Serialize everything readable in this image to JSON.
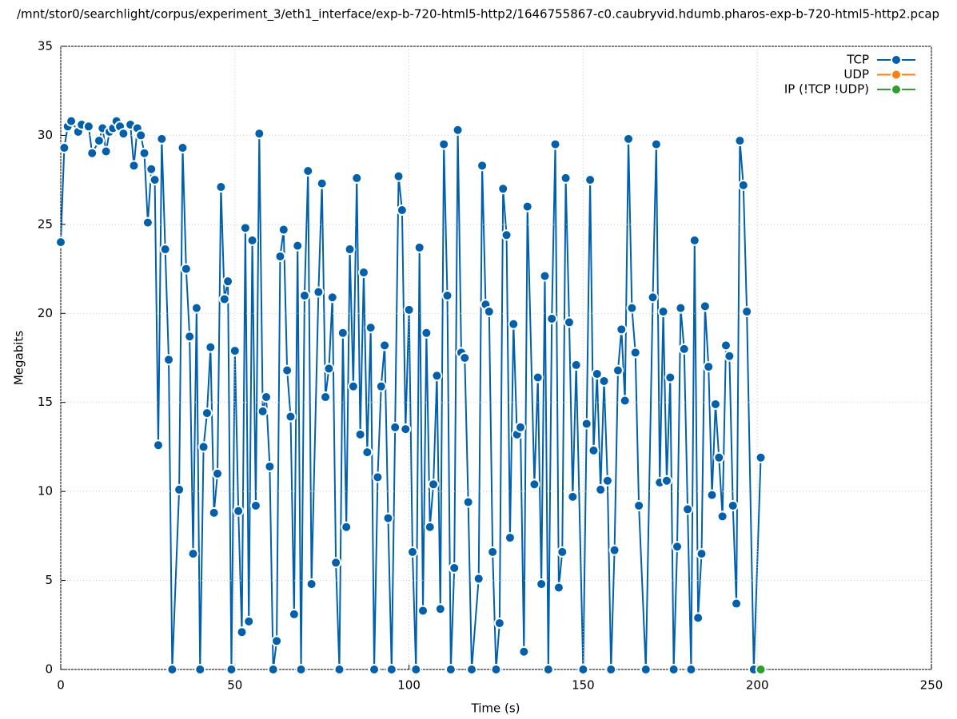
{
  "chart_data": {
    "type": "line",
    "title": "/mnt/stor0/searchlight/corpus/experiment_3/eth1_interface/exp-b-720-html5-http2/1646755867-c0.caubryvid.hdumb.pharos-exp-b-720-html5-http2.pcap",
    "x_label": "Time (s)",
    "y_label": "Megabits",
    "xlim": [
      0,
      250
    ],
    "xticks": [
      0,
      50,
      100,
      150,
      200,
      250
    ],
    "ylim": [
      0,
      35
    ],
    "yticks": [
      0,
      5,
      10,
      15,
      20,
      25,
      30,
      35
    ],
    "grid": true,
    "legend": "top-right",
    "series": [
      {
        "name": "TCP",
        "color": "#0060ad",
        "x": [
          0,
          1,
          2,
          3,
          5,
          6,
          8,
          9,
          11,
          12,
          13,
          14,
          15,
          16,
          17,
          18,
          20,
          21,
          22,
          23,
          24,
          25,
          26,
          27,
          28,
          29,
          30,
          31,
          32,
          34,
          35,
          36,
          37,
          38,
          39,
          40,
          41,
          42,
          43,
          44,
          45,
          46,
          47,
          48,
          49,
          50,
          51,
          52,
          53,
          54,
          55,
          56,
          57,
          58,
          59,
          60,
          61,
          62,
          63,
          64,
          65,
          66,
          67,
          68,
          69,
          70,
          71,
          72,
          74,
          75,
          76,
          77,
          78,
          79,
          80,
          81,
          82,
          83,
          84,
          85,
          86,
          87,
          88,
          89,
          90,
          91,
          92,
          93,
          94,
          95,
          96,
          97,
          98,
          99,
          100,
          101,
          102,
          103,
          104,
          105,
          106,
          107,
          108,
          109,
          110,
          111,
          112,
          113,
          114,
          115,
          116,
          117,
          118,
          120,
          121,
          122,
          123,
          124,
          125,
          126,
          127,
          128,
          129,
          130,
          131,
          132,
          133,
          134,
          136,
          137,
          138,
          139,
          140,
          141,
          142,
          143,
          144,
          145,
          146,
          147,
          148,
          150,
          151,
          152,
          153,
          154,
          155,
          156,
          157,
          158,
          159,
          160,
          161,
          162,
          163,
          164,
          165,
          166,
          168,
          170,
          171,
          172,
          173,
          174,
          175,
          176,
          177,
          178,
          179,
          180,
          181,
          182,
          183,
          184,
          185,
          186,
          187,
          188,
          189,
          190,
          191,
          192,
          193,
          194,
          195,
          196,
          197,
          199,
          201
        ],
        "values": [
          24.0,
          29.3,
          30.5,
          30.8,
          30.2,
          30.6,
          30.5,
          29.0,
          29.7,
          30.4,
          29.1,
          30.2,
          30.4,
          30.8,
          30.5,
          30.1,
          30.6,
          28.3,
          30.4,
          30.0,
          29.0,
          25.1,
          28.1,
          27.5,
          12.6,
          29.8,
          23.6,
          17.4,
          0,
          10.1,
          29.3,
          22.5,
          18.7,
          6.5,
          20.3,
          0,
          12.5,
          14.4,
          18.1,
          8.8,
          11.0,
          27.1,
          20.8,
          21.8,
          0,
          17.9,
          8.9,
          2.1,
          24.8,
          2.7,
          24.1,
          9.2,
          30.1,
          14.5,
          15.3,
          11.4,
          0,
          1.6,
          23.2,
          24.7,
          16.8,
          14.2,
          3.1,
          23.8,
          0,
          21.0,
          28.0,
          4.8,
          21.2,
          27.3,
          15.3,
          16.9,
          20.9,
          6.0,
          0,
          18.9,
          8.0,
          23.6,
          15.9,
          27.6,
          13.2,
          22.3,
          12.2,
          19.2,
          0,
          10.8,
          15.9,
          18.2,
          8.5,
          0,
          13.6,
          27.7,
          25.8,
          13.5,
          20.2,
          6.6,
          0,
          23.7,
          3.3,
          18.9,
          8.0,
          10.4,
          16.5,
          3.4,
          29.5,
          21.0,
          0,
          5.7,
          30.3,
          17.8,
          17.5,
          9.4,
          0,
          5.1,
          28.3,
          20.5,
          20.1,
          6.6,
          0,
          2.6,
          27.0,
          24.4,
          7.4,
          19.4,
          13.2,
          13.6,
          1.0,
          26.0,
          10.4,
          16.4,
          4.8,
          22.1,
          0,
          19.7,
          29.5,
          4.6,
          6.6,
          27.6,
          19.5,
          9.7,
          17.1,
          0,
          13.8,
          27.5,
          12.3,
          16.6,
          10.1,
          16.2,
          10.6,
          0,
          6.7,
          16.8,
          19.1,
          15.1,
          29.8,
          20.3,
          17.8,
          9.2,
          0,
          20.9,
          29.5,
          10.5,
          20.1,
          10.6,
          16.4,
          0,
          6.9,
          20.3,
          18.0,
          9.0,
          0,
          24.1,
          2.9,
          6.5,
          20.4,
          17.0,
          9.8,
          14.9,
          11.9,
          8.6,
          18.2,
          17.6,
          9.2,
          3.7,
          29.7,
          27.2,
          20.1,
          0,
          11.9
        ]
      },
      {
        "name": "UDP",
        "color": "#ff7f0e",
        "x": [],
        "values": []
      },
      {
        "name": "IP (!TCP  !UDP)",
        "color": "#2ca02c",
        "x": [
          201
        ],
        "values": [
          0
        ]
      }
    ]
  }
}
